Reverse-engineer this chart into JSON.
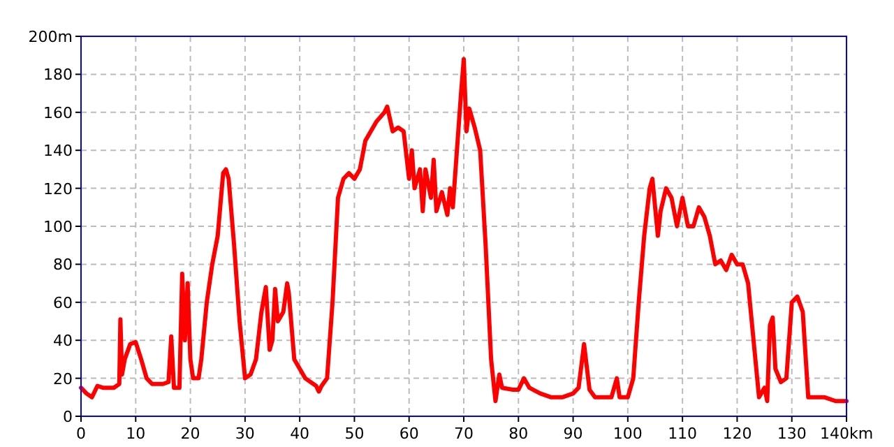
{
  "chart_data": {
    "type": "line",
    "x": [
      0,
      1,
      2,
      3,
      4,
      5,
      6,
      7,
      7.2,
      7.5,
      8,
      9,
      10,
      11,
      12,
      13,
      15,
      16,
      16.5,
      17,
      18,
      18.5,
      19,
      19.5,
      20,
      20.5,
      21.5,
      22,
      23,
      24,
      25,
      26,
      26.5,
      27,
      28,
      29,
      30,
      31,
      32,
      33,
      33.8,
      34.5,
      35,
      35.5,
      36,
      37,
      37.7,
      38,
      39,
      40,
      41,
      43,
      43.5,
      44,
      45,
      46,
      47,
      48,
      49,
      50,
      51,
      52,
      54,
      55.5,
      56,
      57,
      58,
      59,
      60,
      60.5,
      61,
      62,
      62.5,
      63,
      64,
      64.5,
      65,
      66,
      67,
      67.5,
      68,
      69,
      69.5,
      70,
      70.5,
      71,
      72,
      73,
      74,
      75,
      75.8,
      76.5,
      77,
      79,
      80,
      81,
      82,
      84,
      86,
      88,
      90,
      91,
      92,
      93,
      94,
      96,
      97,
      98,
      98.5,
      100,
      101,
      102,
      103,
      104,
      104.5,
      105,
      105.5,
      106,
      107,
      108,
      109,
      110,
      111,
      112,
      113,
      114,
      115,
      116,
      117,
      118,
      119,
      120,
      121,
      122,
      123,
      124,
      125,
      125.5,
      126,
      126.5,
      127,
      128,
      129,
      130,
      131,
      132,
      133,
      135,
      136,
      138,
      140
    ],
    "series": [
      {
        "color": "#ff0000",
        "values": [
          15,
          12,
          10,
          16,
          15,
          15,
          15,
          17,
          51,
          22,
          30,
          38,
          39,
          30,
          20,
          17,
          17,
          18,
          42,
          15,
          15,
          75,
          40,
          70,
          30,
          20,
          20,
          30,
          60,
          80,
          95,
          128,
          130,
          125,
          90,
          50,
          20,
          22,
          30,
          55,
          68,
          35,
          40,
          67,
          50,
          55,
          70,
          65,
          30,
          25,
          20,
          16,
          13,
          16,
          20,
          60,
          115,
          125,
          128,
          125,
          130,
          145,
          155,
          160,
          163,
          150,
          152,
          150,
          125,
          140,
          120,
          130,
          108,
          130,
          115,
          135,
          108,
          118,
          106,
          120,
          110,
          150,
          170,
          188,
          150,
          162,
          152,
          140,
          90,
          30,
          8,
          22,
          15,
          14,
          14,
          20,
          15,
          12,
          10,
          10,
          12,
          15,
          38,
          14,
          10,
          10,
          10,
          20,
          10,
          10,
          20,
          60,
          95,
          120,
          125,
          110,
          95,
          108,
          120,
          115,
          100,
          115,
          100,
          100,
          110,
          105,
          95,
          80,
          82,
          77,
          85,
          80,
          80,
          70,
          40,
          10,
          15,
          8,
          48,
          52,
          25,
          18,
          20,
          60,
          63,
          55,
          10,
          10,
          10,
          8,
          8
        ]
      }
    ],
    "xlim": [
      0,
      140
    ],
    "xticks": [
      0,
      10,
      20,
      30,
      40,
      50,
      60,
      70,
      80,
      90,
      100,
      110,
      120,
      130,
      {
        "value": 140,
        "label": "140km"
      }
    ],
    "ylim": [
      0,
      200
    ],
    "yticks": [
      0,
      20,
      40,
      60,
      80,
      100,
      120,
      140,
      160,
      180,
      {
        "value": 200,
        "label": "200m"
      }
    ],
    "grid": true,
    "line_style": "solid",
    "marker": "none"
  }
}
